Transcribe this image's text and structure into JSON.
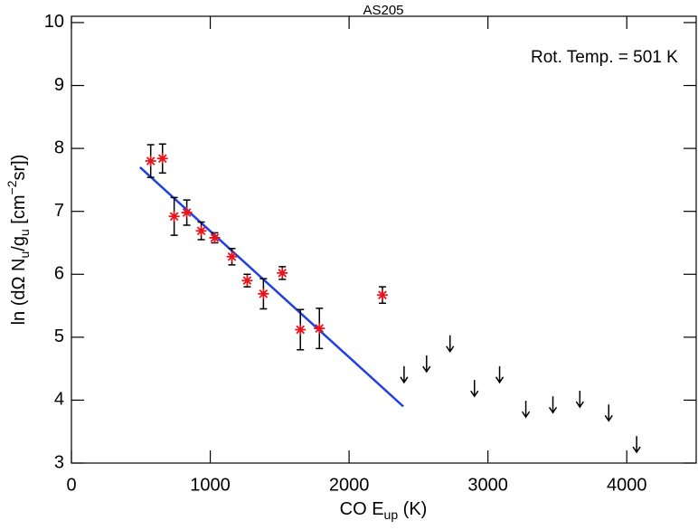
{
  "chart_data": {
    "type": "scatter",
    "title": "AS205",
    "xlabel": [
      {
        "text": "CO E"
      },
      {
        "text": "up",
        "baseline": "sub"
      },
      {
        "text": " (K)"
      }
    ],
    "ylabel": [
      {
        "text": "ln (dΩ N"
      },
      {
        "text": "u",
        "baseline": "sub"
      },
      {
        "text": "/g"
      },
      {
        "text": "u",
        "baseline": "sub"
      },
      {
        "text": " [cm"
      },
      {
        "text": "−2",
        "baseline": "super"
      },
      {
        "text": "sr])"
      }
    ],
    "annotation": {
      "text": "Rot. Temp. = 501 K",
      "color": "#1f3fe0"
    },
    "xlim": [
      0,
      4500
    ],
    "ylim": [
      3,
      10.1
    ],
    "xticks": [
      0,
      1000,
      2000,
      3000,
      4000
    ],
    "yticks": [
      3,
      4,
      5,
      6,
      7,
      8,
      9,
      10
    ],
    "detections": {
      "color": "#e8141c",
      "errcolor": "#000000",
      "x": [
        571,
        656,
        740,
        831,
        935,
        1032,
        1156,
        1266,
        1383,
        1519,
        1649,
        1786,
        2240
      ],
      "y": [
        7.8,
        7.84,
        6.92,
        6.98,
        6.69,
        6.58,
        6.28,
        5.9,
        5.69,
        6.02,
        5.12,
        5.14,
        5.67
      ],
      "err": [
        0.26,
        0.23,
        0.3,
        0.2,
        0.14,
        0.08,
        0.13,
        0.1,
        0.24,
        0.1,
        0.32,
        0.32,
        0.13
      ]
    },
    "upper_limits": {
      "color": "#000000",
      "x": [
        2396,
        2558,
        2727,
        2903,
        3084,
        3273,
        3468,
        3662,
        3870,
        4071
      ],
      "y": [
        4.54,
        4.71,
        5.03,
        4.32,
        4.54,
        3.99,
        4.06,
        4.15,
        3.93,
        3.43
      ]
    },
    "fit": {
      "color": "#1f3fe0",
      "x": [
        494,
        2390
      ],
      "y": [
        7.7,
        3.9
      ]
    }
  }
}
